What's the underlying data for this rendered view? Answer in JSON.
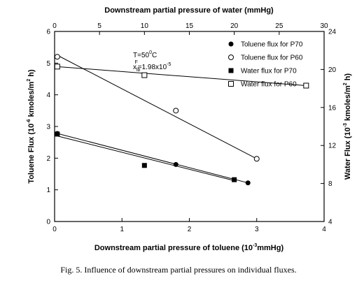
{
  "caption": "Fig. 5. Influence of downstream partial pressures on individual fluxes.",
  "annotation": {
    "temperature_prefix": "T=50",
    "temperature_sup": "0",
    "temperature_suffix": "C",
    "x_base": "x",
    "x_sub": "lb",
    "x_sup": "F",
    "x_value": "=1.98x10",
    "x_exp": "-5"
  },
  "chart_data": {
    "type": "scatter",
    "title": "",
    "x_bottom": {
      "label_main": "Downstream partial pressure of toluene (10",
      "label_sup": "-3",
      "label_tail": "mmHg)",
      "range": [
        0,
        4
      ],
      "ticks": [
        0,
        1,
        2,
        3,
        4
      ]
    },
    "x_top": {
      "label": "Downstream partial pressure of water (mmHg)",
      "range": [
        0,
        30
      ],
      "ticks": [
        0,
        5,
        10,
        15,
        20,
        25,
        30
      ]
    },
    "y_left": {
      "label_main": "Toluene Flux (10",
      "label_sup": "-6",
      "label_tail": " kmoles/m",
      "label_sup2": "2",
      "label_end": " h)",
      "range": [
        0,
        6
      ],
      "ticks": [
        0,
        1,
        2,
        3,
        4,
        5,
        6
      ]
    },
    "y_right": {
      "label_main": "Water Flux (10",
      "label_sup": "-3",
      "label_tail": " kmoles/m",
      "label_sup2": "2",
      "label_end": " h)",
      "range": [
        4,
        24
      ],
      "ticks": [
        4,
        8,
        12,
        16,
        20,
        24
      ]
    },
    "legend_position": "top-right",
    "series": [
      {
        "name": "Toluene flux for P70",
        "marker": "filled-circle",
        "axis": "bottom-left",
        "points": [
          [
            0.04,
            2.78
          ],
          [
            1.8,
            1.8
          ],
          [
            2.87,
            1.22
          ]
        ],
        "fit": [
          [
            0.04,
            2.78
          ],
          [
            2.87,
            1.22
          ]
        ]
      },
      {
        "name": "Toluene flux for P60",
        "marker": "open-circle",
        "axis": "bottom-left",
        "points": [
          [
            0.04,
            5.2
          ],
          [
            1.8,
            3.5
          ],
          [
            3.0,
            1.98
          ]
        ],
        "fit": [
          [
            0.04,
            5.25
          ],
          [
            3.0,
            1.98
          ]
        ]
      },
      {
        "name": "Water flux for P70",
        "marker": "filled-square",
        "axis": "top-right",
        "points": [
          [
            0.3,
            13.2
          ],
          [
            10.0,
            9.9
          ],
          [
            20.0,
            8.4
          ]
        ],
        "fit": [
          [
            0.3,
            13.0
          ],
          [
            20.0,
            8.3
          ]
        ]
      },
      {
        "name": "Water flux for P60",
        "marker": "open-square",
        "axis": "top-right",
        "points": [
          [
            0.3,
            20.3
          ],
          [
            10.0,
            19.4
          ],
          [
            28.0,
            18.3
          ]
        ],
        "fit": [
          [
            0.3,
            20.3
          ],
          [
            28.0,
            18.3
          ]
        ]
      }
    ]
  }
}
